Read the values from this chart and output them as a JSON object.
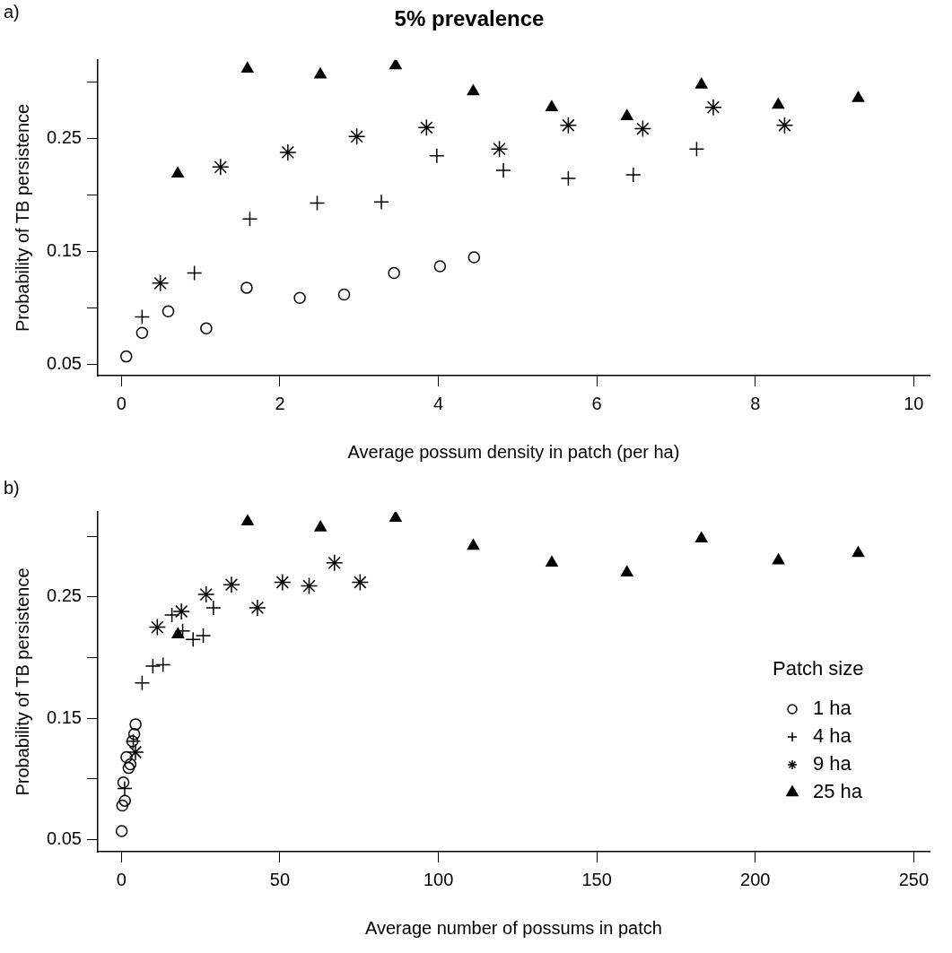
{
  "chart_data": [
    {
      "type": "scatter",
      "title": "5% prevalence",
      "xlabel": "Average possum density in patch (per ha)",
      "ylabel": "Probability of TB persistence",
      "annotations": [
        "a)"
      ],
      "xlim": [
        -0.3,
        10.2
      ],
      "xticks": [
        0,
        2,
        4,
        6,
        8,
        10
      ],
      "ylim": [
        0.04,
        0.32
      ],
      "yticks": [
        0.05,
        {
          "value": 0.1,
          "label": null
        },
        0.15,
        {
          "value": 0.2,
          "label": null
        },
        0.25,
        {
          "value": 0.3,
          "label": null
        }
      ],
      "grid": false,
      "legend": false,
      "series": [
        {
          "color": "#000000",
          "marker": "circle",
          "x": [
            0.06,
            0.26,
            0.59,
            1.07,
            1.58,
            2.25,
            2.81,
            3.44,
            4.02,
            4.45
          ],
          "values": [
            0.057,
            0.078,
            0.097,
            0.082,
            0.118,
            0.109,
            0.112,
            0.131,
            0.137,
            0.145
          ]
        },
        {
          "color": "#000000",
          "marker": "cross",
          "x": [
            0.26,
            0.92,
            1.62,
            2.47,
            3.28,
            3.98,
            4.82,
            5.64,
            6.46,
            7.26
          ],
          "values": [
            0.092,
            0.131,
            0.179,
            0.193,
            0.194,
            0.235,
            0.222,
            0.215,
            0.218,
            0.241
          ]
        },
        {
          "color": "#000000",
          "x": [
            0.49,
            1.25,
            2.1,
            2.97,
            3.85,
            4.77,
            5.64,
            6.58,
            7.47,
            8.37
          ],
          "values": [
            0.122,
            0.225,
            0.238,
            0.252,
            0.26,
            0.241,
            0.262,
            0.259,
            0.278,
            0.262
          ]
        },
        {
          "color": "#000000",
          "marker": "triangle",
          "x": [
            0.71,
            1.59,
            2.51,
            3.46,
            4.44,
            5.43,
            6.38,
            7.32,
            8.29,
            9.3
          ],
          "values": [
            0.219,
            0.312,
            0.307,
            0.315,
            0.292,
            0.278,
            0.27,
            0.298,
            0.28,
            0.286
          ]
        }
      ]
    },
    {
      "type": "scatter",
      "xlabel": "Average number of possums in patch",
      "ylabel": "Probability of TB persistence",
      "annotations": [
        "b)"
      ],
      "legend_title": "Patch size",
      "xlim": [
        -7.5,
        255
      ],
      "xticks": [
        0,
        50,
        100,
        150,
        200,
        250
      ],
      "ylim": [
        0.04,
        0.32
      ],
      "yticks": [
        0.05,
        {
          "value": 0.1,
          "label": null
        },
        0.15,
        {
          "value": 0.2,
          "label": null
        },
        0.25,
        {
          "value": 0.3,
          "label": null
        }
      ],
      "grid": false,
      "legend": "bottom right",
      "series": [
        {
          "name": "1 ha",
          "color": "#000000",
          "marker": "circle",
          "x": [
            0.06,
            0.26,
            0.59,
            1.07,
            1.58,
            2.25,
            2.81,
            3.44,
            4.02,
            4.45
          ],
          "values": [
            0.057,
            0.078,
            0.097,
            0.082,
            0.118,
            0.109,
            0.112,
            0.131,
            0.137,
            0.145
          ]
        },
        {
          "name": "4 ha",
          "color": "#000000",
          "marker": "cross",
          "x": [
            1.0,
            3.7,
            6.5,
            9.9,
            13.1,
            15.9,
            19.3,
            22.6,
            25.8,
            29.0
          ],
          "values": [
            0.092,
            0.131,
            0.179,
            0.193,
            0.194,
            0.235,
            0.222,
            0.215,
            0.218,
            0.241
          ]
        },
        {
          "name": "9 ha",
          "color": "#000000",
          "x": [
            4.4,
            11.3,
            18.9,
            26.7,
            34.7,
            42.9,
            50.8,
            59.2,
            67.2,
            75.3
          ],
          "values": [
            0.122,
            0.225,
            0.238,
            0.252,
            0.26,
            0.241,
            0.262,
            0.259,
            0.278,
            0.262
          ]
        },
        {
          "name": "25 ha",
          "color": "#000000",
          "marker": "triangle",
          "x": [
            17.8,
            39.8,
            62.8,
            86.5,
            111,
            135.8,
            159.5,
            183,
            207.3,
            232.5
          ],
          "values": [
            0.219,
            0.312,
            0.307,
            0.315,
            0.292,
            0.278,
            0.27,
            0.298,
            0.28,
            0.286
          ]
        }
      ]
    }
  ]
}
